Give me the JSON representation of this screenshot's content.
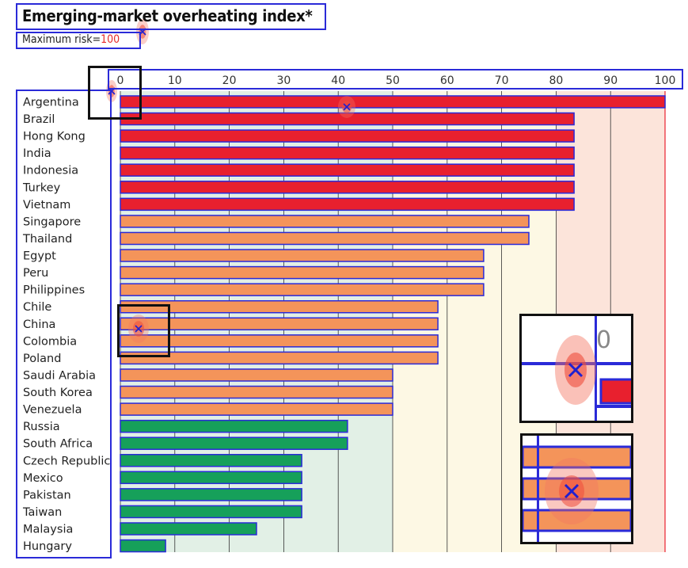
{
  "chart_data": {
    "type": "bar",
    "orientation": "horizontal",
    "title": "Emerging-market overheating index*",
    "subtitle_prefix": "Maximum risk=",
    "subtitle_value": "100",
    "xlim": [
      0,
      100
    ],
    "x_ticks": [
      "0",
      "10",
      "20",
      "30",
      "40",
      "50",
      "60",
      "70",
      "80",
      "90",
      "100"
    ],
    "categories": [
      "Argentina",
      "Brazil",
      "Hong Kong",
      "India",
      "Indonesia",
      "Turkey",
      "Vietnam",
      "Singapore",
      "Thailand",
      "Egypt",
      "Peru",
      "Philippines",
      "Chile",
      "China",
      "Colombia",
      "Poland",
      "Saudi Arabia",
      "South Korea",
      "Venezuela",
      "Russia",
      "South Africa",
      "Czech Republic",
      "Mexico",
      "Pakistan",
      "Taiwan",
      "Malaysia",
      "Hungary"
    ],
    "values": [
      100,
      83.3,
      83.3,
      83.3,
      83.3,
      83.3,
      83.3,
      75,
      75,
      66.7,
      66.7,
      66.7,
      58.3,
      58.3,
      58.3,
      58.3,
      50,
      50,
      50,
      41.7,
      41.7,
      33.3,
      33.3,
      33.3,
      33.3,
      25,
      8.3
    ],
    "grid": true,
    "legend": "none",
    "colors": {
      "high": "#e8202e",
      "medium": "#f4945a",
      "low": "#16a05a",
      "band_low": "#e2f0e6",
      "band_mid": "#fdf8e4",
      "band_high": "#fce4da",
      "outline": "#2a2ad8",
      "grid": "#333333"
    }
  }
}
